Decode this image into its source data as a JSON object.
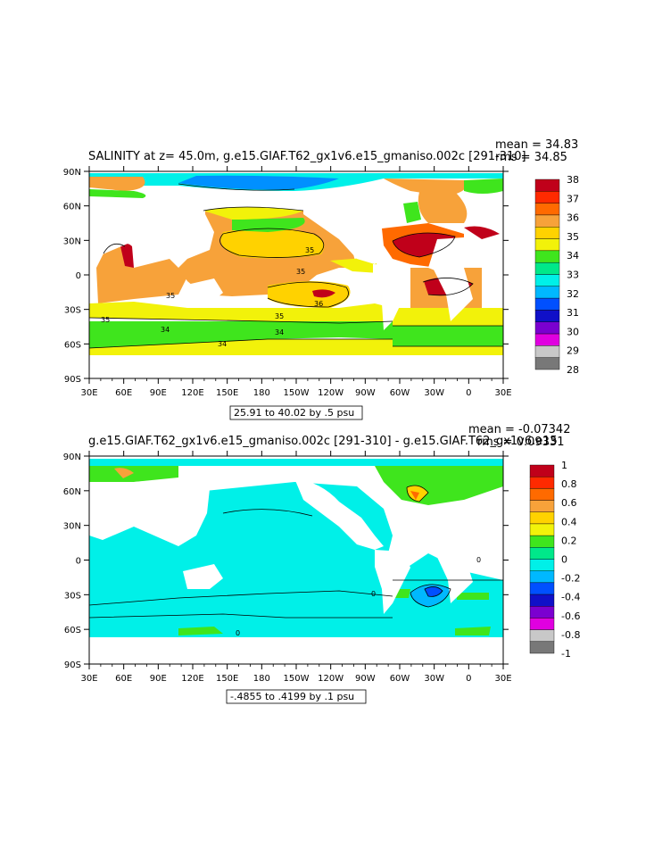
{
  "chart_data": [
    {
      "type": "heatmap",
      "title": "SALINITY at z=  45.0m, g.e15.GIAF.T62_gx1v6.e15_gmaniso.002c [291-310]",
      "stats": {
        "mean": "mean = 34.83",
        "rms": "rms = 34.85"
      },
      "range_label": "25.91 to 40.02 by .5 psu",
      "x_ticks": [
        "30E",
        "60E",
        "90E",
        "120E",
        "150E",
        "180",
        "150W",
        "120W",
        "90W",
        "60W",
        "30W",
        "0",
        "30E"
      ],
      "y_ticks": [
        "90N",
        "60N",
        "30N",
        "0",
        "30S",
        "60S",
        "90S"
      ],
      "colorbar": {
        "labels": [
          "38",
          "37",
          "36",
          "35",
          "34",
          "33",
          "32",
          "31",
          "30",
          "29",
          "28"
        ],
        "colors": [
          "#c0001a",
          "#ff2a00",
          "#ff6a00",
          "#f7a23a",
          "#ffd200",
          "#f2f20a",
          "#3fe51d",
          "#00e88a",
          "#00f0e8",
          "#00b8ff",
          "#0050ff",
          "#1010c8",
          "#7b00d0",
          "#e000e0",
          "#c8c8c8",
          "#787878"
        ]
      },
      "contour_labels": [
        "35",
        "35",
        "35",
        "36",
        "35",
        "35",
        "34",
        "34",
        "34"
      ],
      "field_colors": {
        "c38": "#c0001a",
        "c365": "#ff6a00",
        "c36": "#f7a23a",
        "c355": "#ffd200",
        "c35": "#f2f20a",
        "c345": "#f2f20a",
        "c34": "#3fe51d",
        "c33": "#00e88a",
        "c32": "#00f0e8",
        "c31": "#0090ff",
        "c30": "#0050ff"
      }
    },
    {
      "type": "heatmap",
      "title": "g.e15.GIAF.T62_gx1v6.e15_gmaniso.002c [291-310] - g.e15.GIAF.T62_gx1v6.e15",
      "stats": {
        "mean": "mean = -0.07342",
        "rms": "rms = 0.09331"
      },
      "range_label": "-.4855 to .4199 by .1 psu",
      "x_ticks": [
        "30E",
        "60E",
        "90E",
        "120E",
        "150E",
        "180",
        "150W",
        "120W",
        "90W",
        "60W",
        "30W",
        "0",
        "30E"
      ],
      "y_ticks": [
        "90N",
        "60N",
        "30N",
        "0",
        "30S",
        "60S",
        "90S"
      ],
      "colorbar": {
        "labels": [
          "1",
          "0.8",
          "0.6",
          "0.4",
          "0.2",
          "0",
          "-0.2",
          "-0.4",
          "-0.6",
          "-0.8",
          "-1"
        ],
        "colors": [
          "#c0001a",
          "#ff2a00",
          "#ff6a00",
          "#f7a23a",
          "#ffd200",
          "#f2f20a",
          "#3fe51d",
          "#00e88a",
          "#00f0e8",
          "#00b8ff",
          "#0050ff",
          "#1010c8",
          "#7b00d0",
          "#e000e0",
          "#c8c8c8",
          "#787878"
        ]
      },
      "contour_labels": [
        "0",
        "0",
        "0"
      ],
      "field_colors": {
        "pos02": "#3fe51d",
        "pos04": "#f7a23a",
        "neg0": "#00f0e8",
        "neg02": "#00b8ff",
        "neg04": "#0050ff",
        "zero": "#00e88a"
      }
    }
  ]
}
